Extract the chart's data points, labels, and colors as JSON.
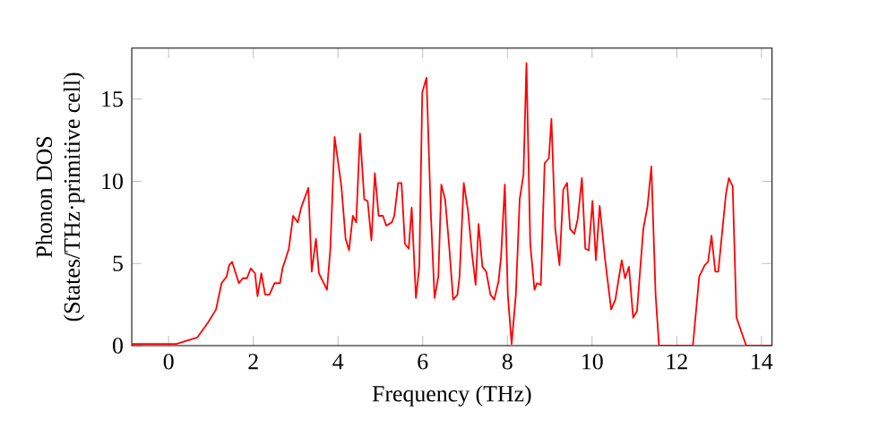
{
  "chart_data": {
    "type": "line",
    "xlabel": "Frequency (THz)",
    "ylabel": "Phonon DOS\n(States/THz·primitive cell)",
    "xlim": [
      -0.87,
      14.25
    ],
    "ylim": [
      0,
      18.1
    ],
    "xticks": [
      0,
      2,
      4,
      6,
      8,
      10,
      12,
      14
    ],
    "yticks": [
      0,
      5,
      10,
      15
    ],
    "marker": "none",
    "line_style": "solid",
    "series": [
      {
        "color": "#ff0000",
        "x": [
          -0.87,
          0.18,
          0.68,
          0.93,
          1.12,
          1.25,
          1.37,
          1.43,
          1.5,
          1.66,
          1.75,
          1.85,
          1.94,
          2.04,
          2.1,
          2.19,
          2.28,
          2.38,
          2.5,
          2.63,
          2.69,
          2.84,
          2.94,
          3.05,
          3.13,
          3.3,
          3.38,
          3.48,
          3.55,
          3.74,
          3.82,
          3.92,
          4.08,
          4.18,
          4.26,
          4.35,
          4.43,
          4.52,
          4.62,
          4.7,
          4.79,
          4.87,
          4.96,
          5.06,
          5.14,
          5.27,
          5.33,
          5.42,
          5.5,
          5.58,
          5.67,
          5.74,
          5.84,
          5.92,
          5.99,
          6.09,
          6.19,
          6.28,
          6.37,
          6.44,
          6.53,
          6.62,
          6.72,
          6.82,
          6.87,
          6.97,
          7.07,
          7.16,
          7.25,
          7.32,
          7.41,
          7.5,
          7.6,
          7.69,
          7.79,
          7.85,
          7.94,
          8.01,
          8.1,
          8.2,
          8.29,
          8.38,
          8.45,
          8.54,
          8.64,
          8.7,
          8.79,
          8.88,
          8.98,
          9.04,
          9.13,
          9.23,
          9.32,
          9.41,
          9.48,
          9.58,
          9.66,
          9.76,
          9.84,
          9.92,
          10.01,
          10.09,
          10.18,
          10.3,
          10.45,
          10.55,
          10.7,
          10.78,
          10.87,
          10.97,
          11.06,
          11.21,
          11.31,
          11.4,
          11.5,
          11.58,
          12.38,
          12.53,
          12.66,
          12.74,
          12.82,
          12.91,
          12.98,
          13.16,
          13.23,
          13.32,
          13.41,
          13.64,
          14.25
        ],
        "values": [
          0.1,
          0.1,
          0.5,
          1.4,
          2.2,
          3.8,
          4.2,
          4.9,
          5.1,
          3.8,
          4.1,
          4.1,
          4.7,
          4.4,
          3.0,
          4.4,
          3.1,
          3.1,
          3.8,
          3.8,
          4.7,
          5.9,
          7.9,
          7.5,
          8.4,
          9.6,
          4.5,
          6.5,
          4.4,
          3.4,
          5.9,
          12.7,
          9.7,
          6.5,
          5.8,
          7.9,
          7.5,
          12.9,
          8.9,
          8.8,
          6.4,
          10.5,
          7.9,
          7.9,
          7.3,
          7.5,
          7.9,
          9.9,
          9.9,
          6.2,
          5.9,
          8.4,
          2.9,
          4.8,
          15.4,
          16.3,
          8.2,
          2.9,
          4.2,
          9.8,
          8.9,
          6.2,
          2.8,
          3.1,
          4.2,
          9.9,
          8.2,
          5.7,
          3.7,
          7.4,
          4.8,
          4.5,
          3.1,
          2.8,
          3.9,
          5.4,
          9.8,
          3.1,
          0.1,
          3.1,
          8.9,
          10.4,
          17.2,
          6.2,
          3.4,
          3.8,
          3.7,
          11.1,
          11.4,
          13.8,
          7.1,
          4.9,
          9.5,
          9.9,
          7.1,
          6.8,
          7.7,
          10.2,
          5.9,
          5.8,
          8.8,
          5.2,
          8.5,
          5.4,
          2.2,
          2.8,
          5.2,
          4.1,
          4.8,
          1.7,
          2.1,
          7.1,
          8.5,
          10.9,
          3.1,
          0,
          0,
          4.2,
          4.9,
          5.1,
          6.7,
          4.5,
          4.5,
          9.2,
          10.2,
          9.7,
          1.7,
          0,
          0
        ]
      }
    ]
  }
}
